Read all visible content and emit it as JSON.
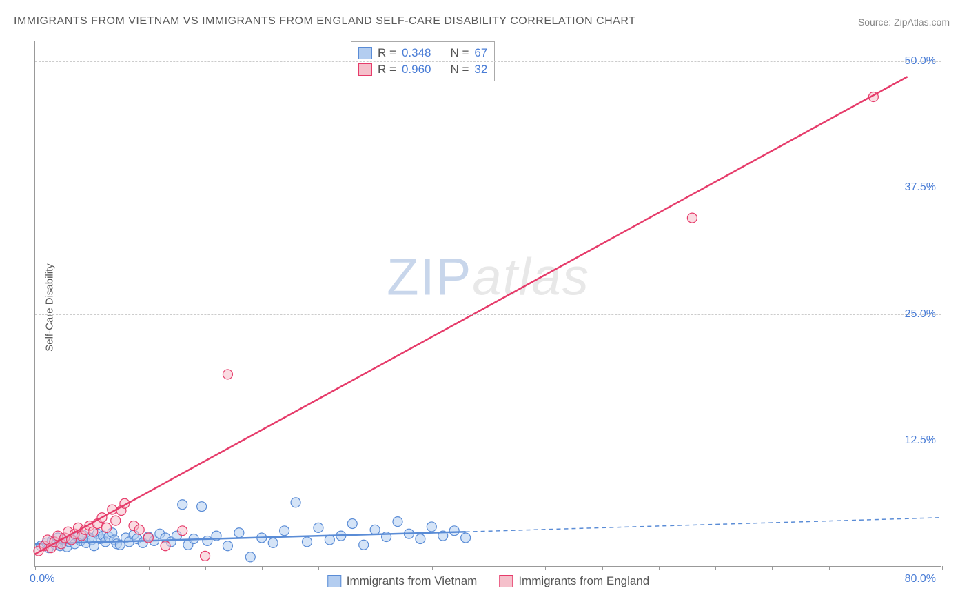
{
  "title": "IMMIGRANTS FROM VIETNAM VS IMMIGRANTS FROM ENGLAND SELF-CARE DISABILITY CORRELATION CHART",
  "source": "Source: ZipAtlas.com",
  "ylabel": "Self-Care Disability",
  "watermark_zip": "ZIP",
  "watermark_atlas": "atlas",
  "chart": {
    "type": "scatter_with_trend",
    "xlim": [
      0,
      80
    ],
    "ylim": [
      0,
      52
    ],
    "xtick_labels": {
      "min": "0.0%",
      "max": "80.0%"
    },
    "xtick_positions": [
      0,
      5,
      10,
      15,
      20,
      25,
      30,
      35,
      40,
      45,
      50,
      55,
      60,
      65,
      70,
      75,
      80
    ],
    "ytick_labels": [
      "12.5%",
      "25.0%",
      "37.5%",
      "50.0%"
    ],
    "ytick_positions": [
      12.5,
      25.0,
      37.5,
      50.0
    ],
    "grid_color": "#cccccc",
    "axis_color": "#999999",
    "background_color": "#ffffff",
    "marker_radius": 7,
    "marker_stroke_width": 1.2,
    "trend_line_width": 2.5,
    "series": [
      {
        "name": "Immigrants from Vietnam",
        "fill": "#b3cdf0",
        "stroke": "#5a8cd6",
        "fill_opacity": 0.55,
        "R": "0.348",
        "N": "67",
        "trend": {
          "x1": 0,
          "y1": 2.2,
          "x2": 38,
          "y2": 3.4,
          "dash_x2": 80,
          "dash_y2": 4.8
        },
        "points": [
          [
            0.5,
            2.0
          ],
          [
            1.0,
            2.3
          ],
          [
            1.2,
            1.8
          ],
          [
            1.5,
            2.5
          ],
          [
            1.8,
            2.1
          ],
          [
            2.0,
            2.8
          ],
          [
            2.2,
            2.0
          ],
          [
            2.5,
            2.6
          ],
          [
            2.8,
            1.9
          ],
          [
            3.0,
            2.4
          ],
          [
            3.2,
            2.7
          ],
          [
            3.5,
            2.2
          ],
          [
            3.8,
            2.9
          ],
          [
            4.0,
            2.5
          ],
          [
            4.2,
            3.1
          ],
          [
            4.5,
            2.3
          ],
          [
            4.8,
            2.8
          ],
          [
            5.0,
            2.6
          ],
          [
            5.2,
            2.0
          ],
          [
            5.5,
            3.2
          ],
          [
            5.8,
            2.7
          ],
          [
            6.0,
            3.0
          ],
          [
            6.2,
            2.4
          ],
          [
            6.5,
            2.9
          ],
          [
            6.8,
            3.3
          ],
          [
            7.0,
            2.6
          ],
          [
            7.2,
            2.2
          ],
          [
            7.5,
            2.1
          ],
          [
            8.0,
            2.8
          ],
          [
            8.3,
            2.4
          ],
          [
            8.7,
            3.1
          ],
          [
            9.0,
            2.7
          ],
          [
            9.5,
            2.3
          ],
          [
            10.0,
            2.9
          ],
          [
            10.5,
            2.5
          ],
          [
            11.0,
            3.2
          ],
          [
            11.5,
            2.8
          ],
          [
            12.0,
            2.4
          ],
          [
            12.5,
            3.0
          ],
          [
            13.0,
            6.1
          ],
          [
            13.5,
            2.1
          ],
          [
            14.0,
            2.7
          ],
          [
            14.7,
            5.9
          ],
          [
            15.2,
            2.5
          ],
          [
            16.0,
            3.0
          ],
          [
            17.0,
            2.0
          ],
          [
            18.0,
            3.3
          ],
          [
            19.0,
            0.9
          ],
          [
            20.0,
            2.8
          ],
          [
            21.0,
            2.3
          ],
          [
            22.0,
            3.5
          ],
          [
            23.0,
            6.3
          ],
          [
            24.0,
            2.4
          ],
          [
            25.0,
            3.8
          ],
          [
            26.0,
            2.6
          ],
          [
            27.0,
            3.0
          ],
          [
            28.0,
            4.2
          ],
          [
            29.0,
            2.1
          ],
          [
            30.0,
            3.6
          ],
          [
            31.0,
            2.9
          ],
          [
            32.0,
            4.4
          ],
          [
            33.0,
            3.2
          ],
          [
            34.0,
            2.7
          ],
          [
            35.0,
            3.9
          ],
          [
            36.0,
            3.0
          ],
          [
            37.0,
            3.5
          ],
          [
            38.0,
            2.8
          ]
        ]
      },
      {
        "name": "Immigrants from England",
        "fill": "#f5c0cb",
        "stroke": "#e63b6a",
        "fill_opacity": 0.55,
        "R": "0.960",
        "N": "32",
        "trend": {
          "x1": 0,
          "y1": 1.2,
          "x2": 77,
          "y2": 48.5
        },
        "points": [
          [
            0.3,
            1.5
          ],
          [
            0.8,
            2.0
          ],
          [
            1.1,
            2.6
          ],
          [
            1.4,
            1.8
          ],
          [
            1.7,
            2.4
          ],
          [
            2.0,
            3.0
          ],
          [
            2.3,
            2.2
          ],
          [
            2.6,
            2.8
          ],
          [
            2.9,
            3.4
          ],
          [
            3.2,
            2.6
          ],
          [
            3.5,
            3.2
          ],
          [
            3.8,
            3.8
          ],
          [
            4.1,
            3.0
          ],
          [
            4.4,
            3.6
          ],
          [
            4.8,
            4.0
          ],
          [
            5.1,
            3.4
          ],
          [
            5.5,
            4.2
          ],
          [
            5.9,
            4.8
          ],
          [
            6.3,
            3.8
          ],
          [
            6.8,
            5.6
          ],
          [
            7.1,
            4.5
          ],
          [
            7.6,
            5.5
          ],
          [
            7.9,
            6.2
          ],
          [
            8.7,
            4.0
          ],
          [
            9.2,
            3.6
          ],
          [
            10.0,
            2.8
          ],
          [
            11.5,
            2.0
          ],
          [
            13.0,
            3.5
          ],
          [
            15.0,
            1.0
          ],
          [
            17.0,
            19.0
          ],
          [
            58.0,
            34.5
          ],
          [
            74.0,
            46.5
          ]
        ]
      }
    ]
  },
  "legend_top": {
    "rows": [
      {
        "swatch_fill": "#b3cdf0",
        "swatch_stroke": "#5a8cd6",
        "r_lbl": "R =",
        "r_val": "0.348",
        "n_lbl": "N =",
        "n_val": "67"
      },
      {
        "swatch_fill": "#f5c0cb",
        "swatch_stroke": "#e63b6a",
        "r_lbl": "R =",
        "r_val": "0.960",
        "n_lbl": "N =",
        "n_val": "32"
      }
    ]
  },
  "legend_bottom": {
    "items": [
      {
        "swatch_fill": "#b3cdf0",
        "swatch_stroke": "#5a8cd6",
        "label": "Immigrants from Vietnam"
      },
      {
        "swatch_fill": "#f5c0cb",
        "swatch_stroke": "#e63b6a",
        "label": "Immigrants from England"
      }
    ]
  }
}
